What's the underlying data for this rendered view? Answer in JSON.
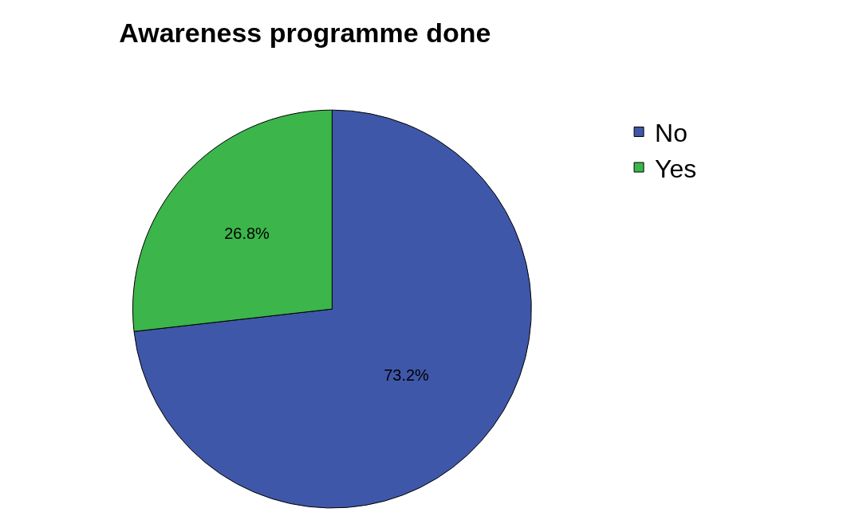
{
  "chart_data": {
    "type": "pie",
    "title": "Awareness programme done",
    "categories": [
      "No",
      "Yes"
    ],
    "values": [
      73.2,
      26.8
    ],
    "colors": [
      "#3f57a8",
      "#3cb54a"
    ],
    "value_labels": [
      "73.2%",
      "26.8%"
    ],
    "legend": "top right"
  }
}
